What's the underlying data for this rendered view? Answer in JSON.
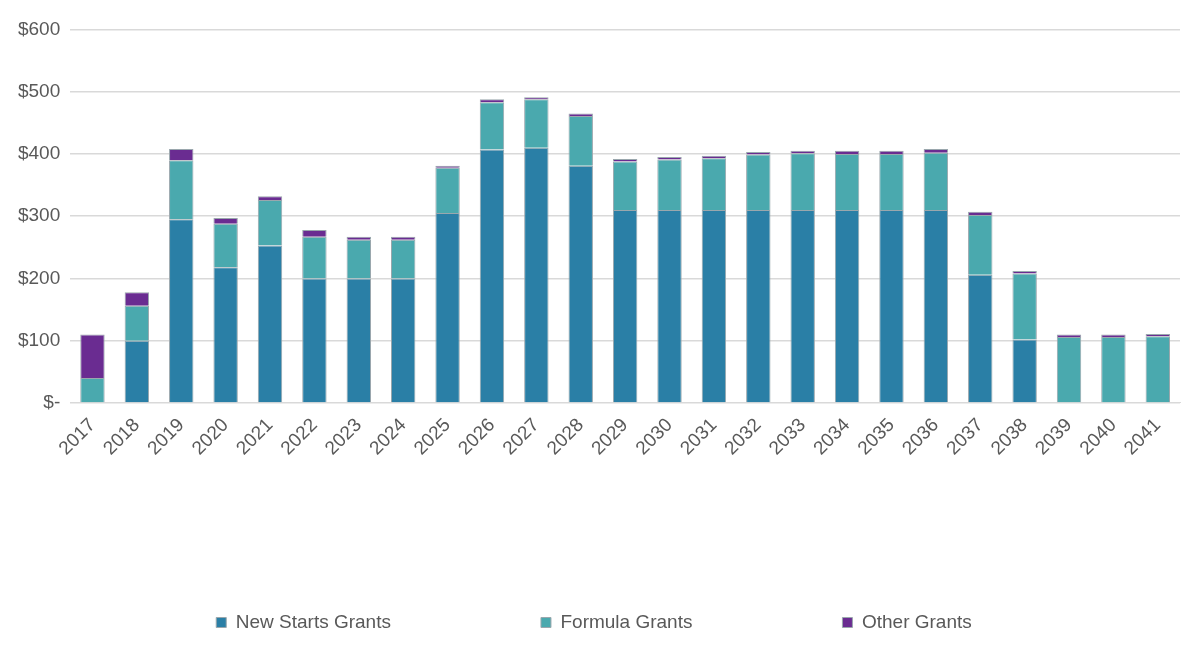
{
  "chart_data": {
    "type": "bar",
    "stacked": true,
    "categories": [
      "2017",
      "2018",
      "2019",
      "2020",
      "2021",
      "2022",
      "2023",
      "2024",
      "2025",
      "2026",
      "2027",
      "2028",
      "2029",
      "2030",
      "2031",
      "2032",
      "2033",
      "2034",
      "2035",
      "2036",
      "2037",
      "2038",
      "2039",
      "2040",
      "2041"
    ],
    "series": [
      {
        "name": "New Starts Grants",
        "color": "#2a7fa6",
        "values": [
          0,
          100,
          295,
          218,
          253,
          200,
          200,
          200,
          305,
          407,
          410,
          381,
          310,
          310,
          310,
          310,
          310,
          310,
          310,
          310,
          206,
          102,
          0,
          0,
          0
        ]
      },
      {
        "name": "Formula Grants",
        "color": "#4aa9ae",
        "values": [
          40,
          56,
          95,
          70,
          73,
          67,
          62,
          62,
          73,
          76,
          78,
          80,
          78,
          81,
          83,
          89,
          91,
          90,
          90,
          92,
          96,
          106,
          106,
          106,
          107
        ]
      },
      {
        "name": "Other Grants",
        "color": "#6a2c91",
        "values": [
          70,
          22,
          18,
          9,
          6,
          11,
          5,
          5,
          3,
          5,
          3,
          4,
          4,
          4,
          4,
          4,
          4,
          5,
          5,
          6,
          5,
          4,
          4,
          4,
          4
        ]
      }
    ],
    "ylim": [
      0,
      600
    ],
    "yticks": [
      {
        "value": 0,
        "label": "$-"
      },
      {
        "value": 100,
        "label": "$100"
      },
      {
        "value": 200,
        "label": "$200"
      },
      {
        "value": 300,
        "label": "$300"
      },
      {
        "value": 400,
        "label": "$400"
      },
      {
        "value": 500,
        "label": "$500"
      },
      {
        "value": 600,
        "label": "$600"
      }
    ],
    "grid": "y",
    "legend": "bottom"
  }
}
